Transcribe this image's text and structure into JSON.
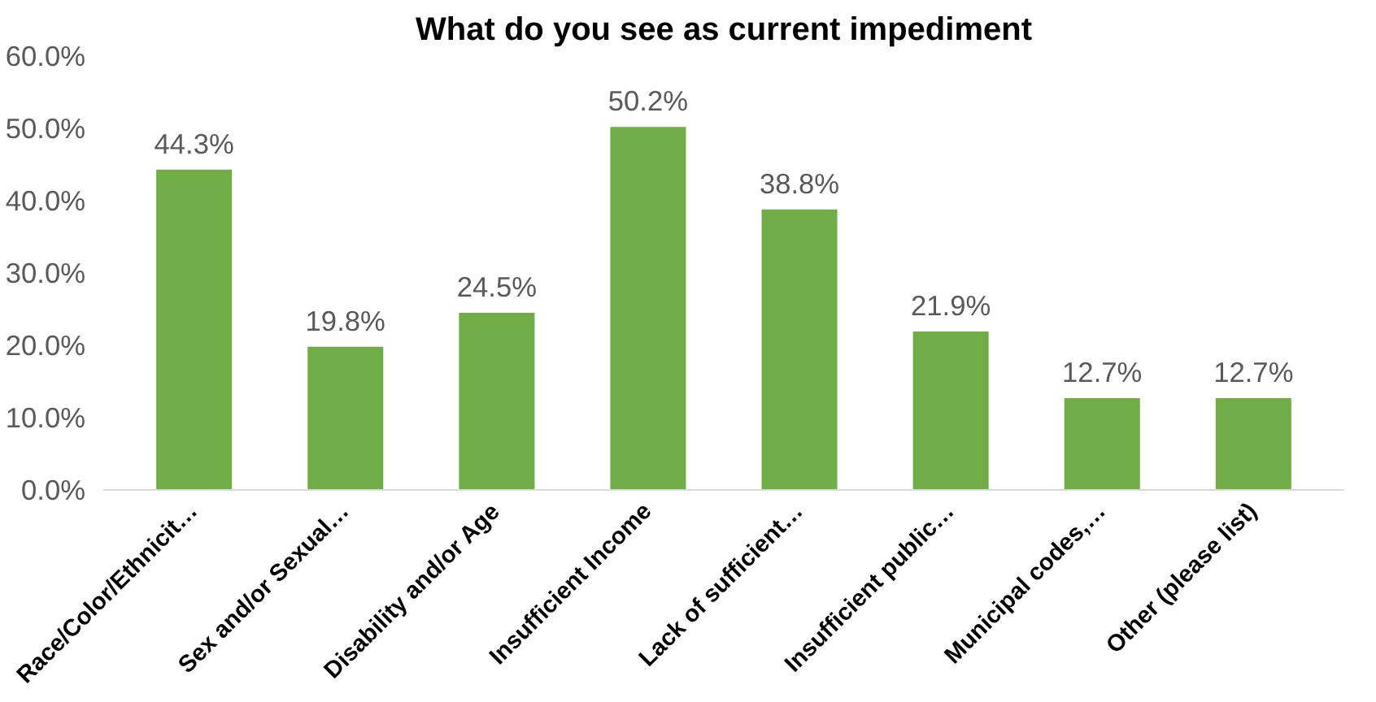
{
  "chart_data": {
    "type": "bar",
    "title": "What do you see as current impediment",
    "categories": [
      "Race/Color/Ethnicit…",
      "Sex and/or Sexual…",
      "Disability and/or Age",
      "Insufficient Income",
      "Lack of sufficient…",
      "Insufficient public…",
      "Municipal codes,…",
      "Other (please list)"
    ],
    "values": [
      44.3,
      19.8,
      24.5,
      50.2,
      38.8,
      21.9,
      12.7,
      12.7
    ],
    "value_labels": [
      "44.3%",
      "19.8%",
      "24.5%",
      "50.2%",
      "38.8%",
      "21.9%",
      "12.7%",
      "12.7%"
    ],
    "color": "#70ad47",
    "ylim": [
      0,
      60
    ],
    "yticks": [
      {
        "value": 0,
        "label": "0.0%"
      },
      {
        "value": 10,
        "label": "10.0%"
      },
      {
        "value": 20,
        "label": "20.0%"
      },
      {
        "value": 30,
        "label": "30.0%"
      },
      {
        "value": 40,
        "label": "40.0%"
      },
      {
        "value": 50,
        "label": "50.0%"
      },
      {
        "value": 60,
        "label": "60.0%"
      }
    ],
    "grid": false
  }
}
